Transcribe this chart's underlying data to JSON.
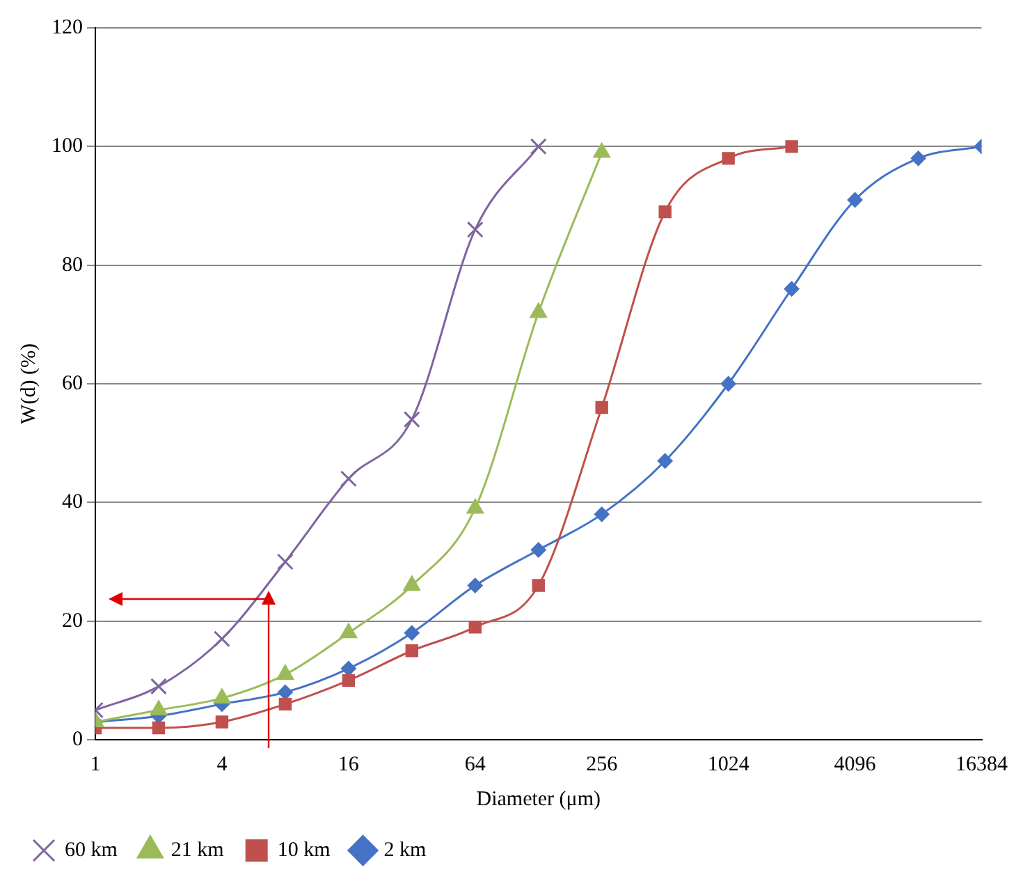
{
  "chart_data": {
    "type": "line",
    "xlabel": "Diameter (μm)",
    "ylabel": "W(d) (%)",
    "x": [
      1,
      2,
      4,
      8,
      16,
      32,
      64,
      128,
      256,
      512,
      1024,
      2048,
      4096,
      8192,
      16384
    ],
    "series": [
      {
        "name": "2 km",
        "color": "#4472c4",
        "marker": "diamond",
        "values": [
          3,
          4,
          6,
          8,
          12,
          18,
          26,
          32,
          38,
          47,
          60,
          76,
          91,
          98,
          100
        ]
      },
      {
        "name": "10 km",
        "color": "#c0504d",
        "marker": "square",
        "values": [
          2,
          2,
          3,
          6,
          10,
          15,
          19,
          26,
          56,
          89,
          98,
          100,
          null,
          null,
          null
        ]
      },
      {
        "name": "21 km",
        "color": "#9bbb59",
        "marker": "triangle",
        "values": [
          3,
          5,
          7,
          11,
          18,
          26,
          39,
          72,
          99,
          null,
          null,
          null,
          null,
          null,
          null
        ]
      },
      {
        "name": "60 km",
        "color": "#8064a2",
        "marker": "cross",
        "values": [
          5,
          9,
          17,
          30,
          44,
          54,
          86,
          100,
          null,
          null,
          null,
          null,
          null,
          null,
          null
        ]
      }
    ],
    "xlim": [
      1,
      16384
    ],
    "xticks": [
      1,
      4,
      16,
      64,
      256,
      1024,
      4096,
      16384
    ],
    "log": "x",
    "ylim": [
      0,
      120
    ],
    "yticks": [
      0,
      20,
      40,
      60,
      80,
      100,
      120
    ],
    "grid": "y",
    "legend": "bottom",
    "line_style": "solid"
  }
}
